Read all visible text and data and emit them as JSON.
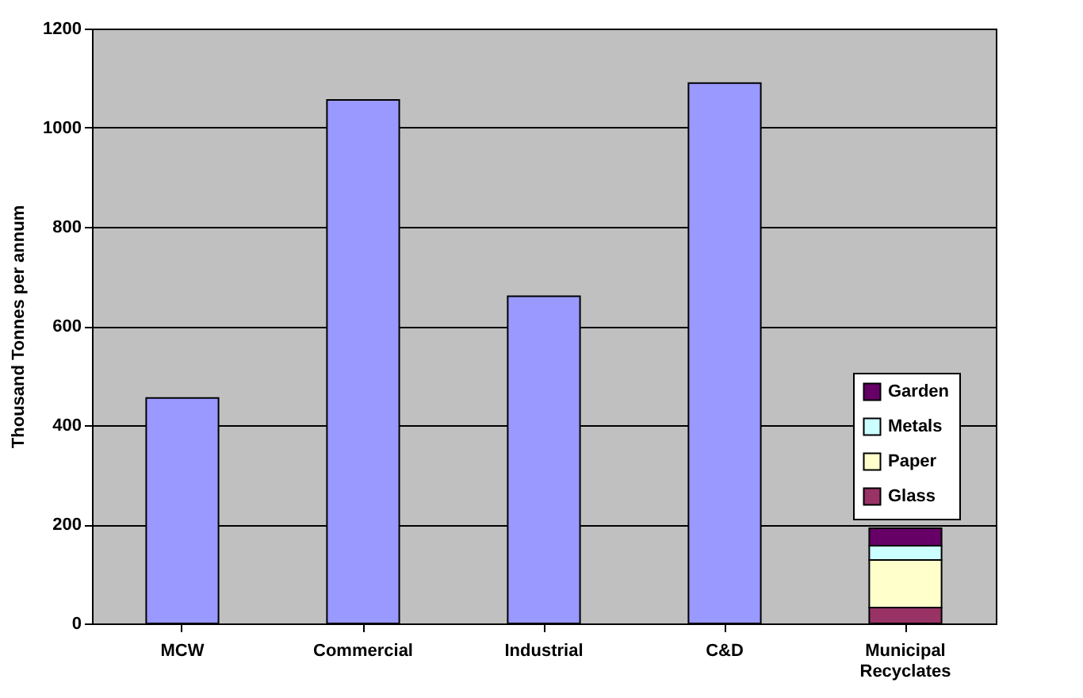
{
  "chart_data": {
    "type": "bar",
    "ylabel": "Thousand Tonnes per annum",
    "categories": [
      "MCW",
      "Commercial",
      "Industrial",
      "C&D",
      "Municipal Recyclates"
    ],
    "series": [
      {
        "color": "#9999ff",
        "values": [
          455,
          1056,
          660,
          1090,
          null
        ]
      },
      {
        "name": "Glass",
        "color": "#993366",
        "values": [
          null,
          null,
          null,
          null,
          32
        ]
      },
      {
        "name": "Paper",
        "color": "#ffffcc",
        "values": [
          null,
          null,
          null,
          null,
          96
        ]
      },
      {
        "name": "Metals",
        "color": "#ccffff",
        "values": [
          null,
          null,
          null,
          null,
          29
        ]
      },
      {
        "name": "Garden",
        "color": "#660066",
        "values": [
          null,
          null,
          null,
          null,
          35
        ]
      }
    ],
    "stacked": true,
    "ylim": [
      0,
      1200
    ],
    "yticks": [
      0,
      200,
      400,
      600,
      800,
      1000,
      1200
    ],
    "grid": "y",
    "legend": "right"
  }
}
